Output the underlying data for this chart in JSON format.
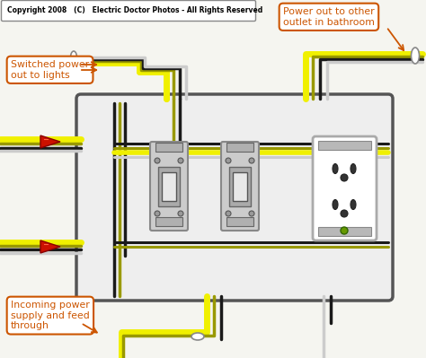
{
  "title": "Copyright 2008   (C)   Electric Doctor Photos - All Rights Reserved",
  "bg_color": "#f5f5f0",
  "box_facecolor": "#e8e8e8",
  "box_edgecolor": "#444444",
  "wire_yellow": "#f0f000",
  "wire_black": "#1a1a1a",
  "wire_white": "#cccccc",
  "wire_olive": "#999900",
  "wire_connector_red": "#cc1100",
  "label_color": "#cc5500",
  "label1": "Switched power\nout to lights",
  "label2": "Power out to other\noutlet in bathroom",
  "label3": "Incoming power\nsupply and feed\nthrough",
  "figsize": [
    4.74,
    3.99
  ],
  "dpi": 100
}
